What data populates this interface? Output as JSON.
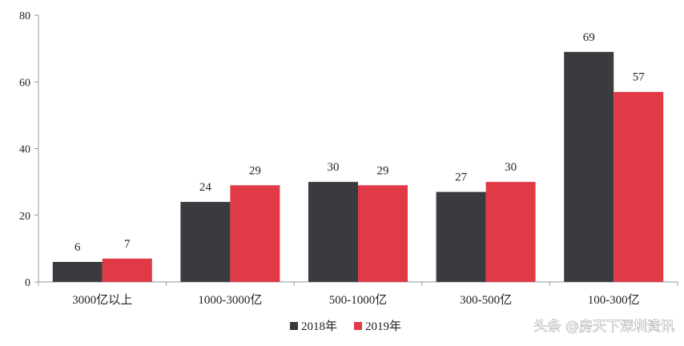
{
  "chart_data": {
    "type": "bar",
    "categories": [
      "3000亿以上",
      "1000-3000亿",
      "500-1000亿",
      "300-500亿",
      "100-300亿"
    ],
    "series": [
      {
        "name": "2018年",
        "values": [
          6,
          24,
          30,
          27,
          69
        ],
        "color": "#3a3b3f"
      },
      {
        "name": "2019年",
        "values": [
          7,
          29,
          29,
          30,
          57
        ],
        "color": "#e03a47"
      }
    ],
    "ylim": [
      0,
      80
    ],
    "yticks": [
      0,
      20,
      40,
      60,
      80
    ],
    "grid": false,
    "legend_position": "bottom-center",
    "data_labels": true
  },
  "watermark": "头条 @房天下深圳资讯"
}
